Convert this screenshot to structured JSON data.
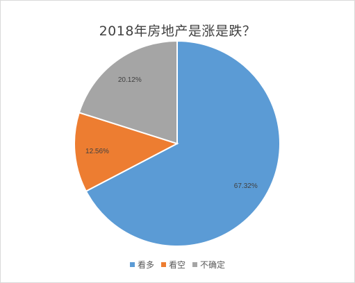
{
  "chart_data": {
    "type": "pie",
    "title": "2018年房地产是涨是跌？",
    "categories": [
      "看多",
      "看空",
      "不确定"
    ],
    "values": [
      67.32,
      12.56,
      20.12
    ],
    "labels": [
      "67.32%",
      "12.56%",
      "20.12%"
    ],
    "colors": [
      "#5b9bd5",
      "#ed7d31",
      "#a5a5a5"
    ],
    "start_angle": "12 o'clock",
    "direction": "clockwise",
    "legend_position": "bottom"
  }
}
